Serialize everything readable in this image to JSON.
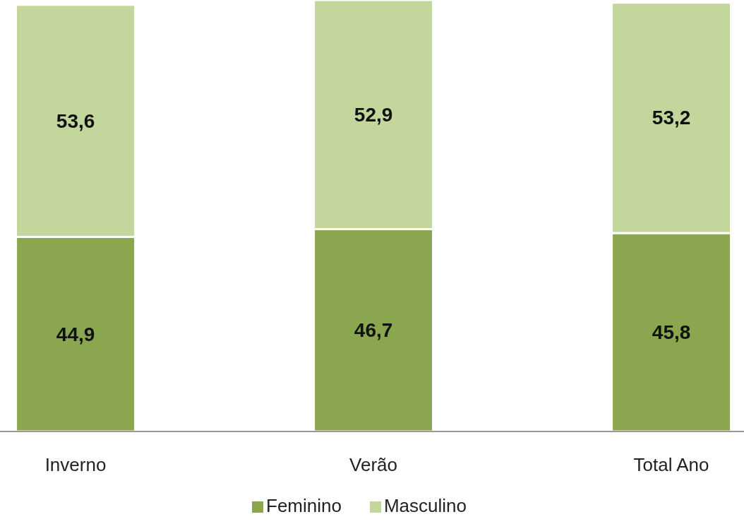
{
  "chart_data": {
    "type": "bar",
    "stacked": true,
    "categories": [
      "Inverno",
      "Verão",
      "Total Ano"
    ],
    "series": [
      {
        "name": "Feminino",
        "color": "#8aa64e",
        "values": [
          44.9,
          46.7,
          45.8
        ],
        "value_labels": [
          "44,9",
          "46,7",
          "45,8"
        ]
      },
      {
        "name": "Masculino",
        "color": "#c3d69b",
        "values": [
          53.6,
          52.9,
          53.2
        ],
        "value_labels": [
          "53,6",
          "52,9",
          "53,2"
        ]
      }
    ],
    "legend": "bottom",
    "grid": false
  }
}
